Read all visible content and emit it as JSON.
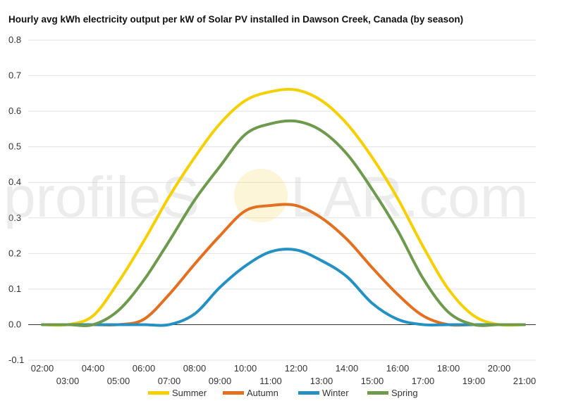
{
  "watermark": {
    "left": "profileS",
    "right": "LAR.com"
  },
  "chart_data": {
    "type": "line",
    "title": "Hourly avg kWh electricity output per kW of Solar PV installed in Dawson Creek, Canada (by season)",
    "xlabel": "",
    "ylabel": "",
    "ylim": [
      -0.1,
      0.8
    ],
    "y_ticks": [
      "-0.1",
      "0.0",
      "0.1",
      "0.2",
      "0.3",
      "0.4",
      "0.5",
      "0.6",
      "0.7",
      "0.8"
    ],
    "x": [
      "02:00",
      "03:00",
      "04:00",
      "05:00",
      "06:00",
      "07:00",
      "08:00",
      "09:00",
      "10:00",
      "11:00",
      "12:00",
      "13:00",
      "14:00",
      "15:00",
      "16:00",
      "17:00",
      "18:00",
      "19:00",
      "20:00",
      "21:00"
    ],
    "grid": true,
    "legend_position": "bottom",
    "series": [
      {
        "name": "Summer",
        "color": "#f5d000",
        "values": [
          0.0,
          0.0,
          0.025,
          0.12,
          0.235,
          0.36,
          0.47,
          0.565,
          0.63,
          0.655,
          0.66,
          0.63,
          0.565,
          0.47,
          0.355,
          0.22,
          0.1,
          0.025,
          0.0,
          0.0
        ]
      },
      {
        "name": "Autumn",
        "color": "#e36f20",
        "values": [
          0.0,
          0.0,
          0.0,
          0.0,
          0.015,
          0.085,
          0.17,
          0.25,
          0.32,
          0.335,
          0.335,
          0.3,
          0.24,
          0.16,
          0.085,
          0.025,
          0.0,
          0.0,
          0.0,
          0.0
        ]
      },
      {
        "name": "Winter",
        "color": "#2591c3",
        "values": [
          0.0,
          0.0,
          0.0,
          0.0,
          0.0,
          0.0,
          0.03,
          0.105,
          0.165,
          0.205,
          0.21,
          0.18,
          0.135,
          0.06,
          0.015,
          0.0,
          0.0,
          0.0,
          0.0,
          0.0
        ]
      },
      {
        "name": "Spring",
        "color": "#6e9a4d",
        "values": [
          0.0,
          0.0,
          0.0,
          0.04,
          0.125,
          0.235,
          0.35,
          0.445,
          0.535,
          0.565,
          0.572,
          0.545,
          0.48,
          0.38,
          0.265,
          0.13,
          0.035,
          0.0,
          0.0,
          0.0
        ]
      }
    ]
  }
}
